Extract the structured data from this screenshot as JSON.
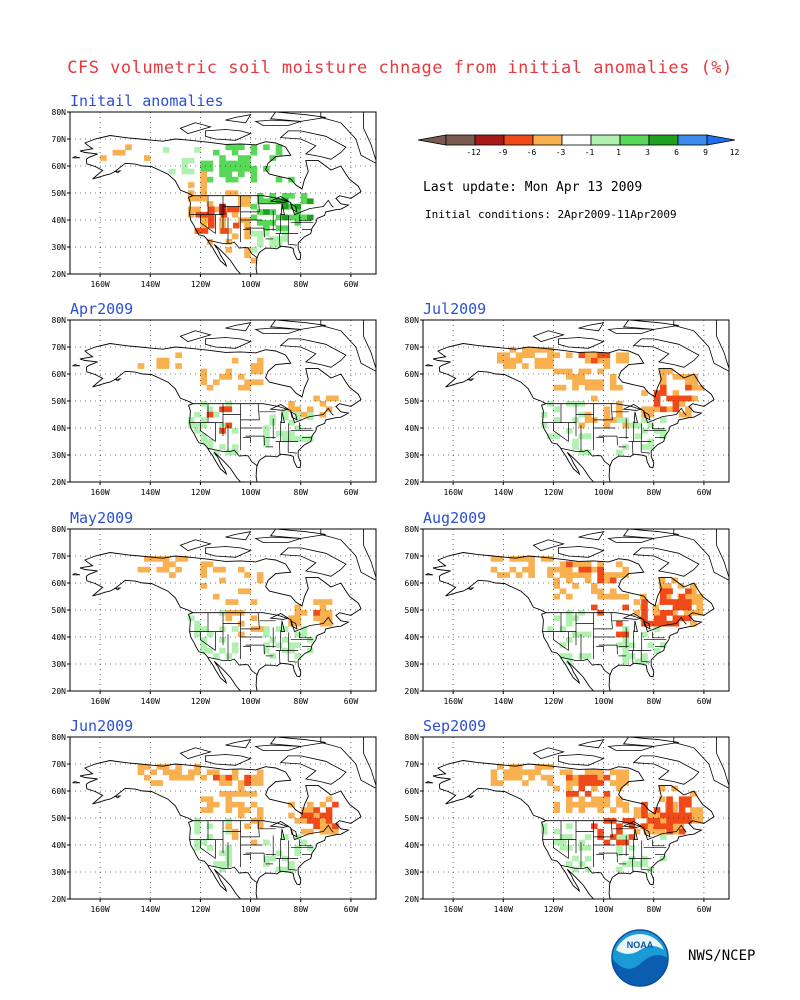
{
  "page": {
    "title": "CFS volumetric soil moisture chnage from initial anomalies (%)",
    "last_update": "Last update: Mon Apr 13 2009",
    "initial_conditions": "Initial conditions: 2Apr2009-11Apr2009",
    "credit": "NWS/NCEP",
    "logo_text": "NOAA"
  },
  "legend": {
    "labels": [
      "-12",
      "-9",
      "-6",
      "-3",
      "-1",
      "1",
      "3",
      "6",
      "9",
      "12"
    ],
    "colors": [
      "#7a5a50",
      "#a81818",
      "#f04a1a",
      "#f8b050",
      "#ffffff",
      "#b0f0b0",
      "#58d858",
      "#20a020",
      "#3c8cf0"
    ],
    "end_left_color": "#7a5a50",
    "end_right_color": "#1e6ef0"
  },
  "axes": {
    "lat_labels": [
      "20N",
      "30N",
      "40N",
      "50N",
      "60N",
      "70N",
      "80N"
    ],
    "lon_labels": [
      "160W",
      "140W",
      "120W",
      "100W",
      "80W",
      "60W"
    ]
  },
  "panels": [
    {
      "title": "Initail anomalies",
      "key": "init"
    },
    {
      "title": "Apr2009",
      "key": "apr"
    },
    {
      "title": "Jul2009",
      "key": "jul"
    },
    {
      "title": "May2009",
      "key": "may"
    },
    {
      "title": "Aug2009",
      "key": "aug"
    },
    {
      "title": "Jun2009",
      "key": "jun"
    },
    {
      "title": "Sep2009",
      "key": "sep"
    }
  ]
}
